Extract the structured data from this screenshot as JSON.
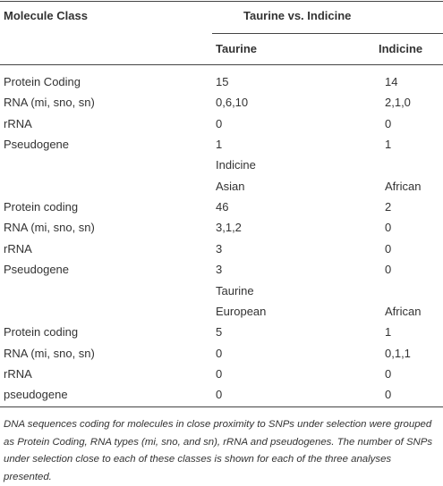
{
  "table": {
    "header": {
      "first": "Molecule Class",
      "group": "Taurine vs. Indicine"
    },
    "subheader": [
      "Taurine",
      "Indicine"
    ],
    "rows": [
      [
        "Protein Coding",
        "15",
        "14"
      ],
      [
        "RNA (mi, sno, sn)",
        "0,6,10",
        "2,1,0"
      ],
      [
        "rRNA",
        "0",
        "0"
      ],
      [
        "Pseudogene",
        "1",
        "1"
      ],
      [
        null,
        "Indicine",
        null
      ],
      [
        null,
        "Asian",
        "African"
      ],
      [
        "Protein coding",
        "46",
        "2"
      ],
      [
        "RNA (mi, sno, sn)",
        "3,1,2",
        "0"
      ],
      [
        "rRNA",
        "3",
        "0"
      ],
      [
        "Pseudogene",
        "3",
        "0"
      ],
      [
        null,
        "Taurine",
        null
      ],
      [
        null,
        "European",
        "African"
      ],
      [
        "Protein coding",
        "5",
        "1"
      ],
      [
        "RNA (mi, sno, sn)",
        "0",
        "0,1,1"
      ],
      [
        "rRNA",
        "0",
        "0"
      ],
      [
        "pseudogene",
        "0",
        "0"
      ]
    ],
    "caption": "DNA sequences coding for molecules in close proximity to SNPs under selection were grouped as Protein Coding, RNA types (mi, sno, and sn), rRNA and pseudogenes. The number of SNPs under selection close to each of these classes is shown for each of the three analyses presented."
  }
}
